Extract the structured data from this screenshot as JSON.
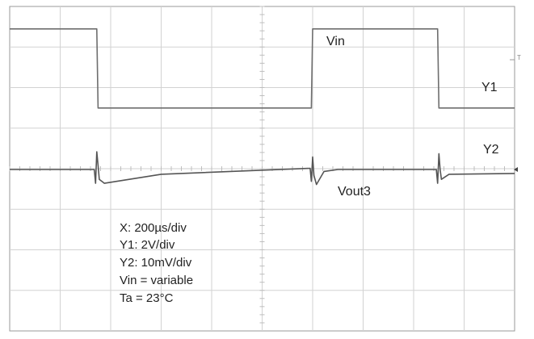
{
  "chart_data": {
    "type": "line",
    "title": "",
    "xlabel": "",
    "ylabel": "",
    "x_unit": "µs",
    "grid": true,
    "grid_divisions": {
      "x": 10,
      "y": 8
    },
    "xlim": [
      0,
      2000
    ],
    "series": [
      {
        "name": "Vin",
        "channel": "Y1",
        "scale": "2V/div",
        "color": "#6e6e6e",
        "x": [
          0,
          345,
          350,
          1195,
          1200,
          1695,
          1700,
          2000
        ],
        "y": [
          5.0,
          5.0,
          -0.2,
          -0.2,
          5.0,
          5.0,
          -0.2,
          -0.2
        ]
      },
      {
        "name": "Vout3",
        "channel": "Y2",
        "scale": "10mV/div",
        "color": "#555555",
        "x": [
          0,
          335,
          340,
          345,
          350,
          355,
          375,
          600,
          1190,
          1195,
          1200,
          1205,
          1215,
          1245,
          1300,
          1690,
          1695,
          1700,
          1705,
          1710,
          1740,
          2000
        ],
        "y": [
          0.0,
          0.0,
          -3.5,
          4.5,
          1.0,
          -2.5,
          -3.5,
          -1.2,
          0.3,
          -3.0,
          3.2,
          -1.5,
          -3.8,
          -0.5,
          0.0,
          0.0,
          -3.5,
          4.0,
          0.0,
          -2.5,
          -1.2,
          -1.0
        ]
      }
    ],
    "labels": {
      "vin": "Vin",
      "y1": "Y1",
      "y2": "Y2",
      "vout3": "Vout3",
      "edge_marker": "T"
    },
    "annotation": [
      "X: 200µs/div",
      "Y1: 2V/div",
      "Y2: 10mV/div",
      "Vin = variable",
      "Ta = 23°C"
    ]
  }
}
